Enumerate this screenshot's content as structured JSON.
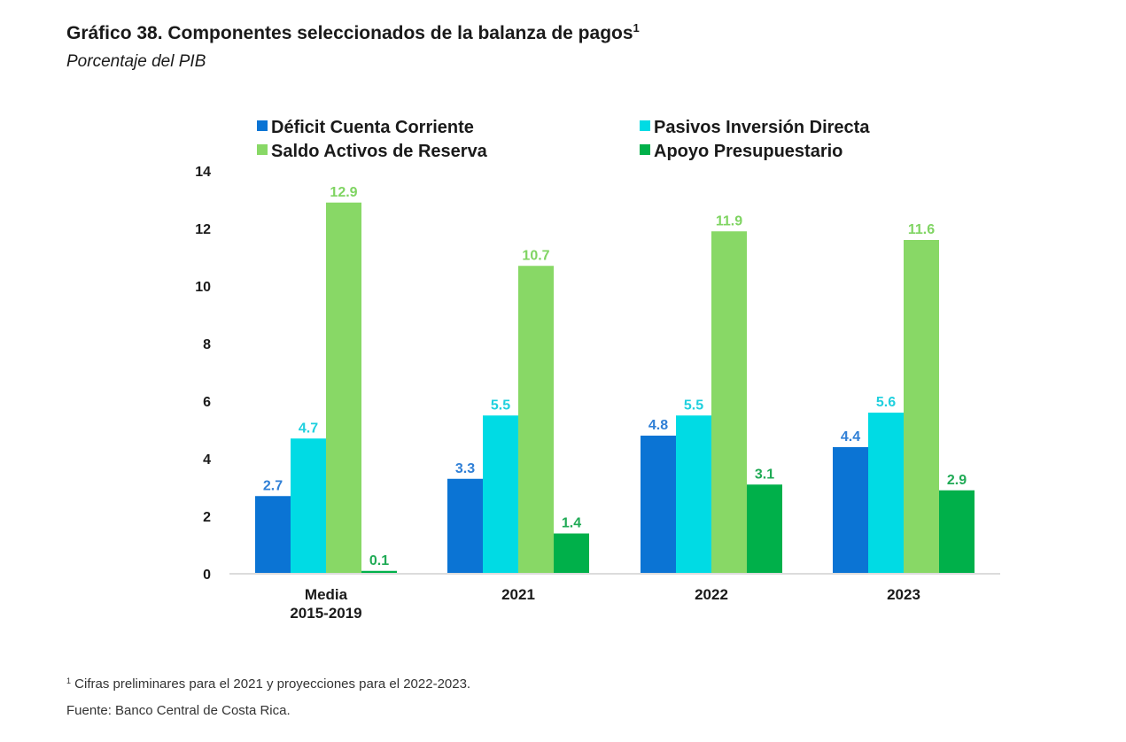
{
  "header": {
    "title": "Gráfico 38. Componentes seleccionados de la balanza de pagos",
    "title_superscript": "1",
    "subtitle": "Porcentaje del PIB"
  },
  "footer": {
    "footnote_marker": "1",
    "footnote": " Cifras preliminares para el 2021 y proyecciones para el 2022-2023.",
    "source": "Fuente: Banco Central de Costa Rica."
  },
  "chart_data": {
    "type": "bar",
    "title": "Gráfico 38. Componentes seleccionados de la balanza de pagos",
    "subtitle": "Porcentaje del PIB",
    "xlabel": "",
    "ylabel": "",
    "ylim": [
      0,
      14
    ],
    "yticks": [
      0,
      2,
      4,
      6,
      8,
      10,
      12,
      14
    ],
    "grid": false,
    "legend_position": "top",
    "categories": [
      [
        "Media",
        "2015-2019"
      ],
      [
        "2021"
      ],
      [
        "2022"
      ],
      [
        "2023"
      ]
    ],
    "series": [
      {
        "name": "Déficit Cuenta Corriente",
        "color": "#0b74d4",
        "label_color": "#2f7fd6",
        "values": [
          2.7,
          3.3,
          4.8,
          4.4
        ]
      },
      {
        "name": "Pasivos Inversión Directa",
        "color": "#00dbe4",
        "label_color": "#1fd0de",
        "values": [
          4.7,
          5.5,
          5.5,
          5.6
        ]
      },
      {
        "name": "Saldo Activos de Reserva",
        "color": "#88d866",
        "label_color": "#7fd462",
        "values": [
          12.9,
          10.7,
          11.9,
          11.6
        ]
      },
      {
        "name": "Apoyo Presupuestario",
        "color": "#00b04a",
        "label_color": "#1faa55",
        "values": [
          0.1,
          1.4,
          3.1,
          2.9
        ]
      }
    ]
  }
}
